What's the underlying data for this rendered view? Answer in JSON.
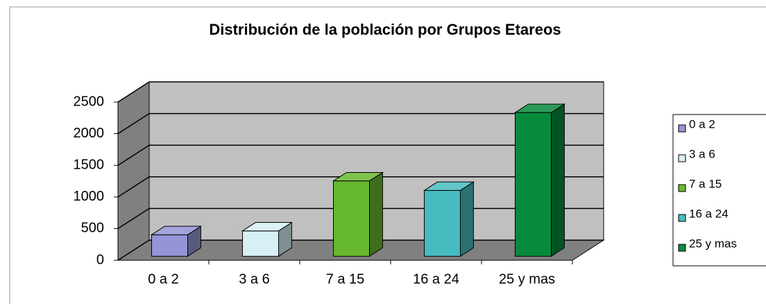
{
  "chart_data": {
    "type": "bar3d",
    "title": "Distribución de la población por Grupos Etareos",
    "categories": [
      "0 a 2",
      "3 a 6",
      "7 a 15",
      "16 a 24",
      "25 y mas"
    ],
    "values": [
      340,
      400,
      1190,
      1040,
      2270
    ],
    "colors": [
      "#9494d6",
      "#d6f0f4",
      "#66b82e",
      "#47bcc0",
      "#078a3c"
    ],
    "ylim": [
      0,
      2500
    ],
    "yticks": [
      0,
      500,
      1000,
      1500,
      2000,
      2500
    ],
    "grid": true,
    "legend": "right"
  }
}
